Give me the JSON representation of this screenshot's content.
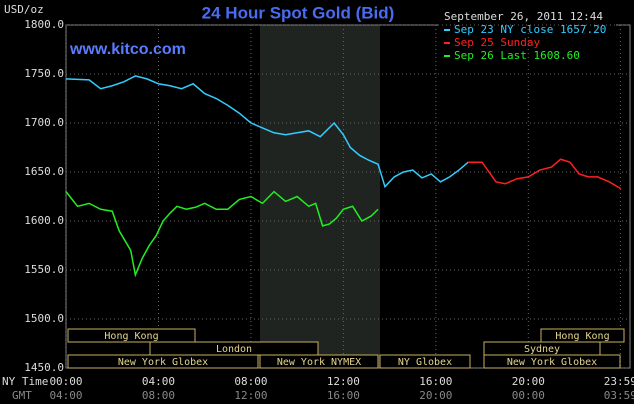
{
  "chart_data": {
    "type": "line",
    "title": "24 Hour Spot Gold (Bid)",
    "y_label": "USD/oz",
    "site": "www.kitco.com",
    "timestamp": "September 26, 2011 12:44",
    "x_label": "NY Time",
    "x2_label": "GMT",
    "xlim": [
      0,
      24.4
    ],
    "ylim": [
      1450,
      1800
    ],
    "yticks": [
      {
        "value": 1800,
        "label": "1800.0"
      },
      {
        "value": 1750,
        "label": "1750.0"
      },
      {
        "value": 1700,
        "label": "1700.0"
      },
      {
        "value": 1650,
        "label": "1650.0"
      },
      {
        "value": 1600,
        "label": "1600.0"
      },
      {
        "value": 1550,
        "label": "1550.0"
      },
      {
        "value": 1500,
        "label": "1500.0"
      },
      {
        "value": 1450,
        "label": "1450.0"
      }
    ],
    "xticks": [
      {
        "value": 0,
        "label": "00:00"
      },
      {
        "value": 4,
        "label": "04:00"
      },
      {
        "value": 8,
        "label": "08:00"
      },
      {
        "value": 12,
        "label": "12:00"
      },
      {
        "value": 16,
        "label": "16:00"
      },
      {
        "value": 20,
        "label": "20:00"
      },
      {
        "value": 23.983,
        "label": "23:59"
      }
    ],
    "x2ticks": [
      {
        "value": 0,
        "label": "04:00"
      },
      {
        "value": 4,
        "label": "08:00"
      },
      {
        "value": 8,
        "label": "12:00"
      },
      {
        "value": 12,
        "label": "16:00"
      },
      {
        "value": 16,
        "label": "20:00"
      },
      {
        "value": 20,
        "label": "00:00"
      },
      {
        "value": 23.983,
        "label": "03:59"
      }
    ],
    "grid": true,
    "sessions": [
      "Hong Kong",
      "London",
      "New York Globex",
      "New York NYMEX",
      "NY Globex",
      "Hong Kong",
      "Sydney",
      "New York Globex"
    ],
    "series": [
      {
        "name": "Sep 23 NY close 1657.20",
        "color": "#33ccff",
        "x": [
          0,
          1,
          1.5,
          2,
          2.5,
          3,
          3.5,
          4,
          4.5,
          5,
          5.5,
          6,
          6.5,
          7,
          7.5,
          8,
          8.5,
          9,
          9.5,
          10,
          10.5,
          11,
          11.6,
          12,
          12.3,
          12.7,
          13.1,
          13.5,
          13.8,
          14.2,
          14.6,
          15,
          15.4,
          15.8,
          16.2,
          16.6,
          17,
          17.4
        ],
        "values": [
          1745,
          1744,
          1735,
          1738,
          1742,
          1748,
          1745,
          1740,
          1738,
          1735,
          1740,
          1730,
          1725,
          1718,
          1710,
          1700,
          1695,
          1690,
          1688,
          1690,
          1692,
          1686,
          1700,
          1688,
          1675,
          1667,
          1662,
          1658,
          1635,
          1645,
          1650,
          1652,
          1644,
          1648,
          1640,
          1645,
          1652,
          1660
        ]
      },
      {
        "name": "Sep 25 Sunday",
        "color": "#ff2020",
        "x": [
          17.4,
          18,
          18.3,
          18.6,
          19,
          19.5,
          20,
          20.5,
          21,
          21.4,
          21.8,
          22.2,
          22.6,
          23,
          23.5,
          24
        ],
        "values": [
          1660,
          1660,
          1650,
          1640,
          1638,
          1643,
          1645,
          1652,
          1655,
          1663,
          1660,
          1648,
          1645,
          1645,
          1640,
          1633
        ]
      },
      {
        "name": "Sep 26 Last 1608.60",
        "color": "#22ee22",
        "x": [
          0,
          0.5,
          1,
          1.5,
          2,
          2.3,
          2.6,
          2.8,
          3,
          3.3,
          3.6,
          3.9,
          4.2,
          4.5,
          4.8,
          5.2,
          5.6,
          6,
          6.5,
          7,
          7.5,
          8,
          8.5,
          9,
          9.5,
          10,
          10.5,
          10.8,
          11.1,
          11.4,
          11.7,
          12,
          12.4,
          12.8,
          13.2,
          13.5
        ],
        "values": [
          1630,
          1615,
          1618,
          1612,
          1610,
          1590,
          1578,
          1570,
          1545,
          1562,
          1575,
          1585,
          1600,
          1608,
          1615,
          1612,
          1614,
          1618,
          1612,
          1612,
          1622,
          1625,
          1618,
          1630,
          1620,
          1625,
          1615,
          1618,
          1595,
          1597,
          1603,
          1612,
          1615,
          1600,
          1605,
          1612
        ]
      }
    ]
  }
}
